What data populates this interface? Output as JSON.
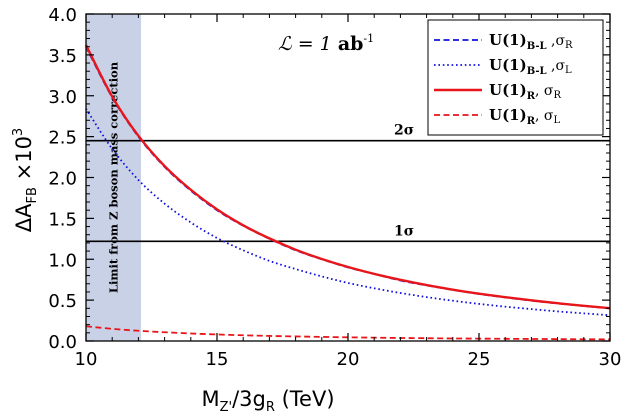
{
  "chart_data": {
    "type": "line",
    "xlabel": {
      "main": "M",
      "sub1": "Z'",
      "mid": "/3g",
      "sub2": "R",
      "units": "   (TeV)"
    },
    "ylabel": {
      "main": "ΔA",
      "sub": "FB",
      "mult": " ×10",
      "sup": "3"
    },
    "xlim": [
      10,
      30
    ],
    "ylim": [
      0.0,
      4.0
    ],
    "x_ticks": [
      10,
      15,
      20,
      25,
      30
    ],
    "x_tick_labels": [
      "10",
      "15",
      "20",
      "25",
      "30"
    ],
    "y_ticks": [
      0.0,
      0.5,
      1.0,
      1.5,
      2.0,
      2.5,
      3.0,
      3.5,
      4.0
    ],
    "y_tick_labels": [
      "0.0",
      "0.5",
      "1.0",
      "1.5",
      "2.0",
      "2.5",
      "3.0",
      "3.5",
      "4.0"
    ],
    "luminosity": {
      "prefix": "ℒ = 1 ",
      "unit": "ab",
      "sup": "-1"
    },
    "excluded_region": {
      "x_range": [
        10,
        12.1
      ],
      "color": "#c9d1e6",
      "label": "Limit from Z boson mass correction"
    },
    "hlines": [
      {
        "y": 2.45,
        "label": "2σ"
      },
      {
        "y": 1.22,
        "label": "1σ"
      }
    ],
    "x": [
      10,
      11,
      12,
      13,
      14,
      15,
      16,
      17,
      18,
      19,
      20,
      21,
      22,
      23,
      24,
      25,
      26,
      27,
      28,
      29,
      30
    ],
    "series": [
      {
        "name": "U(1)B-L, σR",
        "color": "#1010e0",
        "style": "dashed",
        "values": [
          3.6,
          2.98,
          2.5,
          2.13,
          1.84,
          1.6,
          1.41,
          1.25,
          1.11,
          1.0,
          0.9,
          0.82,
          0.74,
          0.68,
          0.625,
          0.575,
          0.533,
          0.494,
          0.459,
          0.428,
          0.4
        ]
      },
      {
        "name": "U(1)B-L, σL",
        "color": "#1010e0",
        "style": "dotted",
        "values": [
          2.84,
          2.35,
          1.97,
          1.68,
          1.45,
          1.26,
          1.11,
          0.98,
          0.88,
          0.79,
          0.71,
          0.645,
          0.587,
          0.537,
          0.493,
          0.454,
          0.42,
          0.39,
          0.362,
          0.338,
          0.315
        ]
      },
      {
        "name": "U(1)R, σR",
        "color": "#e8161a",
        "style": "solid",
        "values": [
          3.62,
          2.99,
          2.51,
          2.14,
          1.85,
          1.61,
          1.415,
          1.255,
          1.117,
          1.003,
          0.905,
          0.821,
          0.748,
          0.684,
          0.628,
          0.579,
          0.536,
          0.497,
          0.462,
          0.431,
          0.402
        ]
      },
      {
        "name": "U(1)R, σL",
        "color": "#e8161a",
        "style": "dashed",
        "values": [
          0.18,
          0.149,
          0.125,
          0.107,
          0.092,
          0.08,
          0.07,
          0.062,
          0.056,
          0.05,
          0.045,
          0.041,
          0.037,
          0.034,
          0.031,
          0.029,
          0.027,
          0.025,
          0.023,
          0.021,
          0.02
        ]
      }
    ],
    "legend": {
      "position": "top-right",
      "entries": [
        {
          "main": "U(1)",
          "sub": "B-L",
          "sep": " ,σ",
          "sig": "R",
          "color": "#1010e0",
          "style": "dashed"
        },
        {
          "main": "U(1)",
          "sub": "B-L",
          "sep": " ,σ",
          "sig": "L",
          "color": "#1010e0",
          "style": "dotted"
        },
        {
          "main": "U(1)",
          "sub": "R",
          "sep": ", σ",
          "sig": "R",
          "color": "#e8161a",
          "style": "solid"
        },
        {
          "main": "U(1)",
          "sub": "R",
          "sep": ", σ",
          "sig": "L",
          "color": "#e8161a",
          "style": "dashed"
        }
      ]
    }
  }
}
